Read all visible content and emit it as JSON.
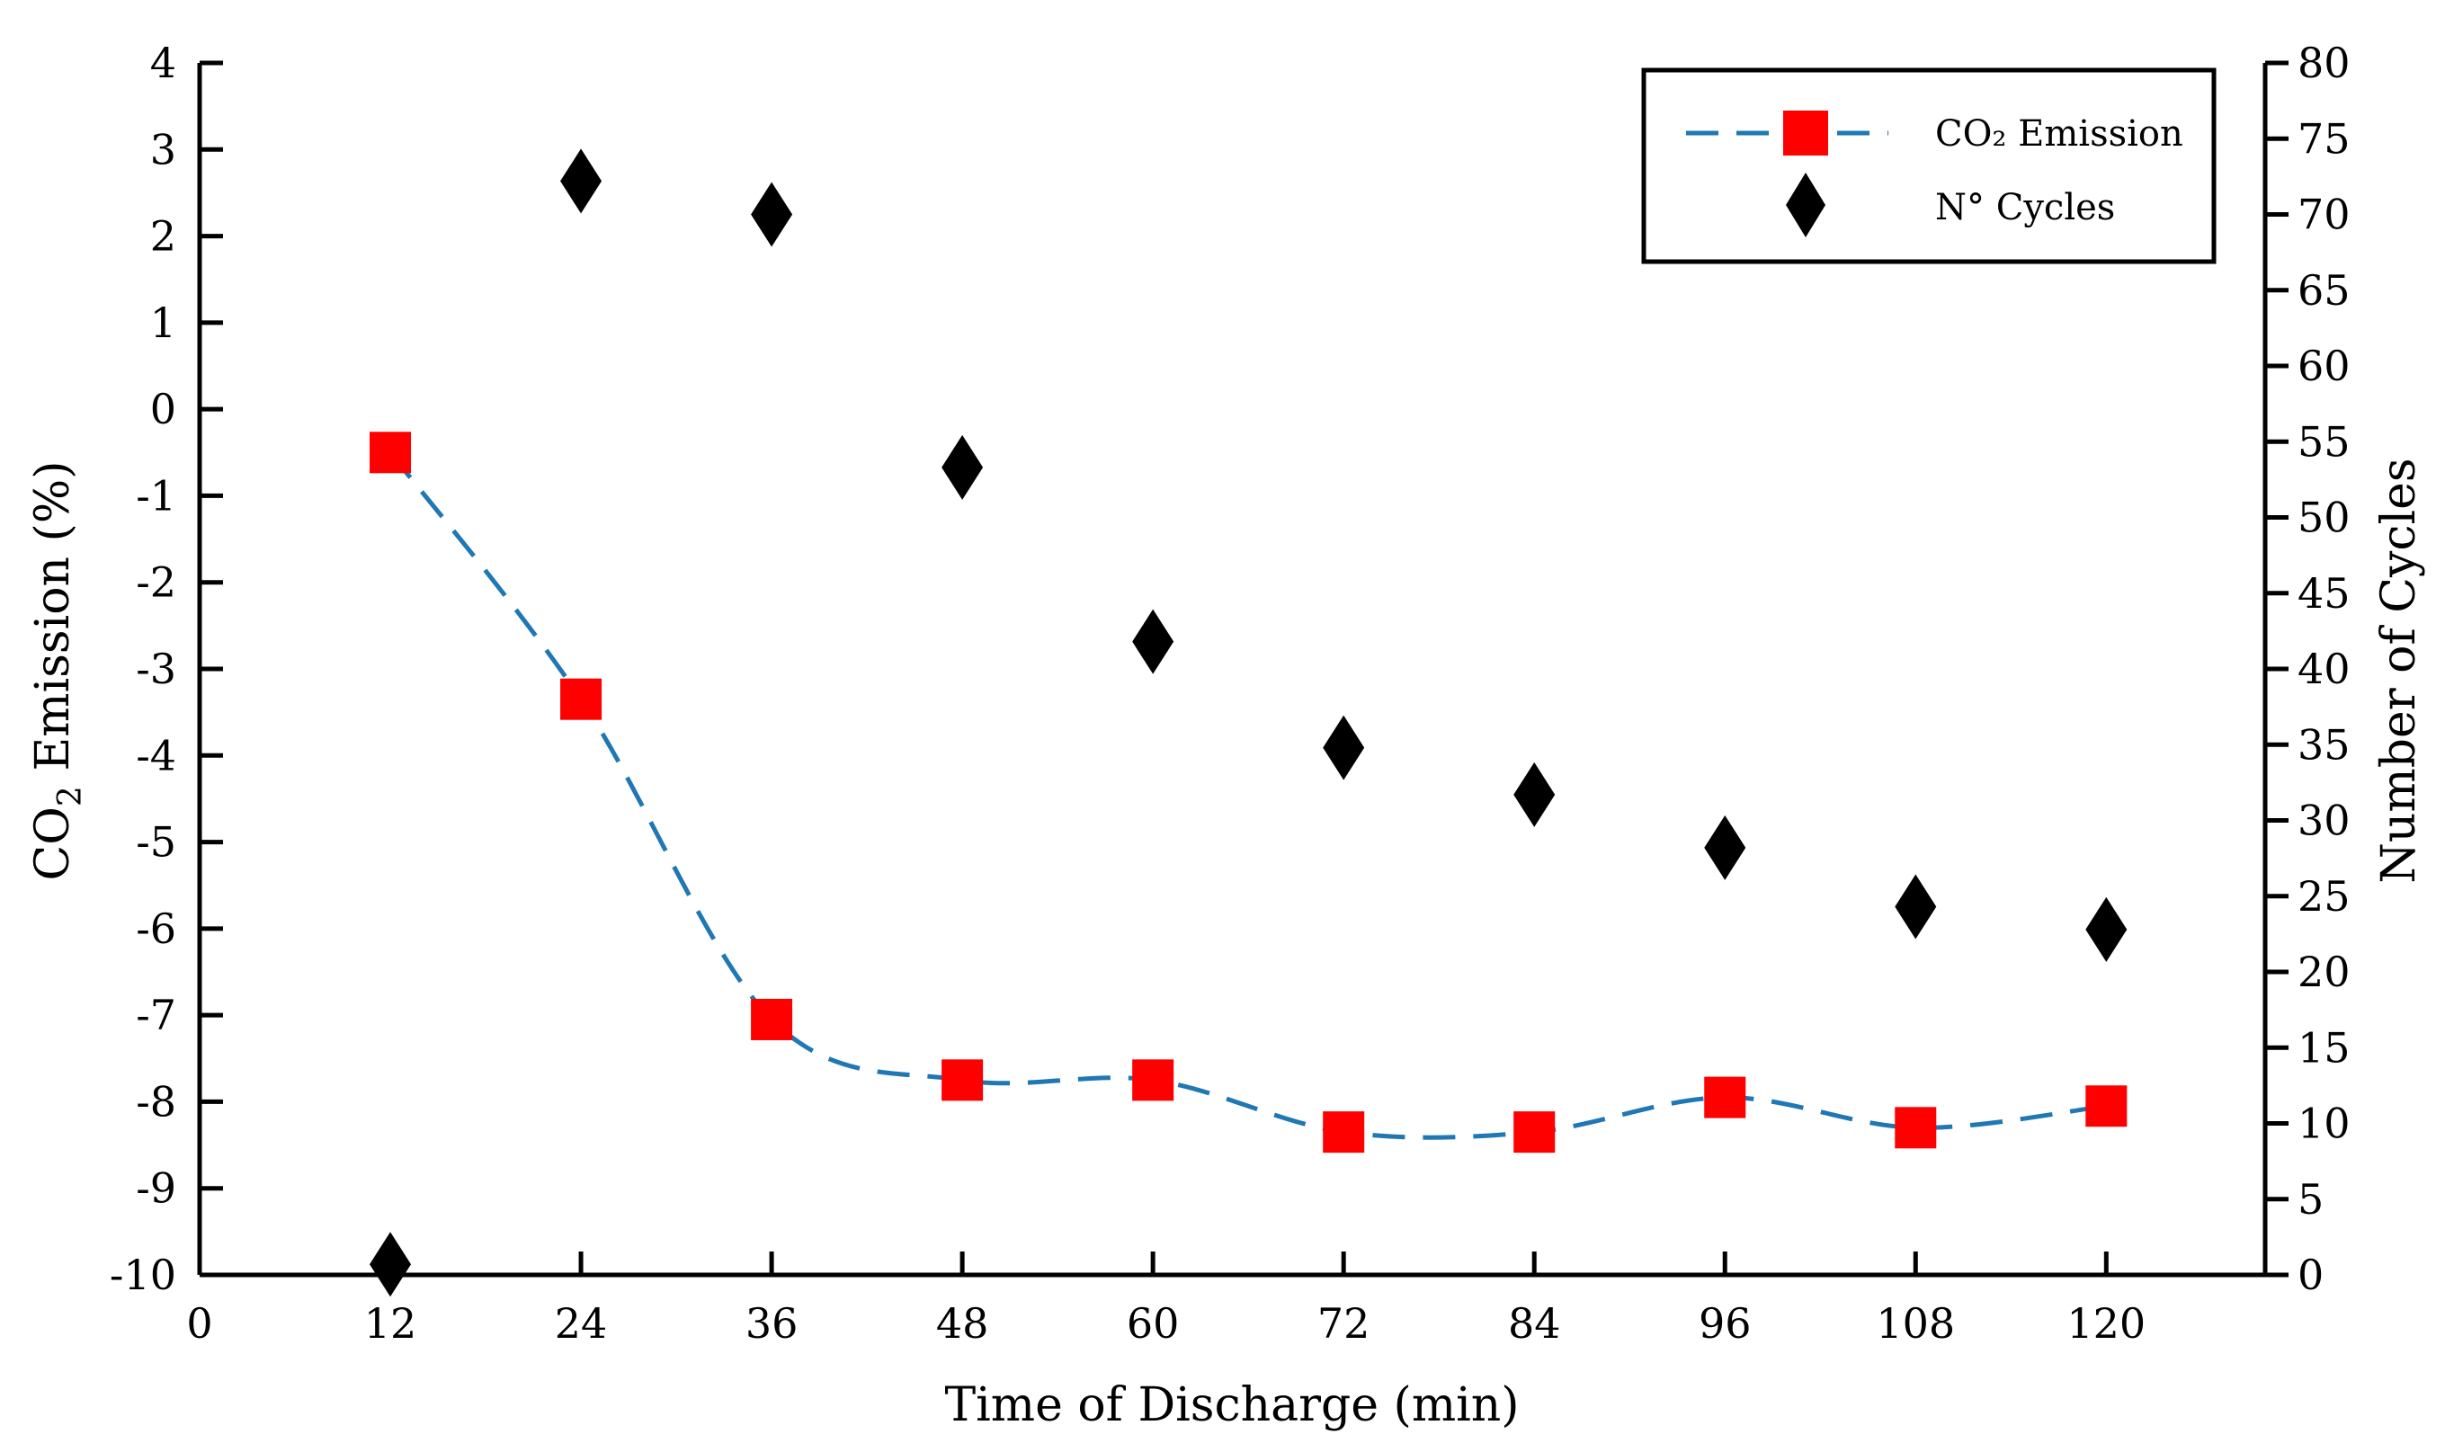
{
  "chart_data": {
    "type": "line+scatter (dual y-axis)",
    "xlabel": "Time of Discharge (min)",
    "ylabel_left_main": "CO",
    "ylabel_left_sub": "2",
    "ylabel_left_rest": " Emission (%)",
    "ylabel_right": "Number of Cycles",
    "x_ticks": [
      "0",
      "12",
      "24",
      "36",
      "48",
      "60",
      "72",
      "84",
      "96",
      "108",
      "120"
    ],
    "y_left_ticks": [
      "4",
      "3",
      "2",
      "1",
      "0",
      "-1",
      "-2",
      "-3",
      "-4",
      "-5",
      "-6",
      "-7",
      "-8",
      "-9",
      "-10"
    ],
    "y_right_ticks": [
      "80",
      "75",
      "70",
      "65",
      "60",
      "55",
      "50",
      "45",
      "40",
      "35",
      "30",
      "25",
      "20",
      "15",
      "10",
      "5",
      "0"
    ],
    "xlim": [
      0,
      130
    ],
    "ylim_left": [
      -10,
      4
    ],
    "ylim_right": [
      0,
      80
    ],
    "legend_position": "top-right",
    "series": [
      {
        "name": "CO₂ Emission",
        "axis": "left",
        "marker": "square",
        "line": "dashed",
        "line_color": "#1f77b4",
        "marker_color": "#ff0000",
        "x": [
          12,
          24,
          36,
          48,
          60,
          72,
          84,
          96,
          108,
          120
        ],
        "y": [
          -0.5,
          -3.35,
          -7.05,
          -7.75,
          -7.75,
          -8.35,
          -8.35,
          -7.95,
          -8.3,
          -8.05
        ]
      },
      {
        "name": "N° Cycles",
        "axis": "right",
        "marker": "diamond",
        "line": "none",
        "marker_color": "#000000",
        "x": [
          12,
          24,
          36,
          48,
          60,
          72,
          84,
          96,
          108,
          120
        ],
        "y": [
          0.7,
          72.2,
          70,
          53.3,
          41.8,
          34.8,
          31.7,
          28.2,
          24.3,
          22.8
        ]
      }
    ]
  }
}
